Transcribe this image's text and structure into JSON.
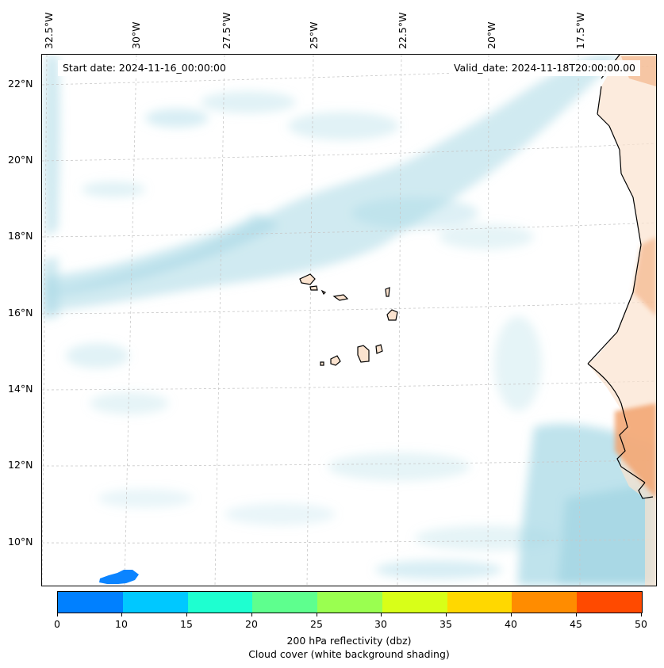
{
  "map": {
    "start_date": "Start date: 2024-11-16_00:00:00",
    "valid_date": "Valid_date: 2024-11-18T20:00:00.00",
    "longitude_labels": [
      "32.5°W",
      "30°W",
      "27.5°W",
      "25°W",
      "22.5°W",
      "20°W",
      "17.5°W"
    ],
    "latitude_labels": [
      "22°N",
      "20°N",
      "18°N",
      "16°N",
      "14°N",
      "12°N",
      "10°N"
    ],
    "land_color": "#f7c8a0",
    "cloud_color": "#a9d9e6"
  },
  "colorbar": {
    "ticks": [
      "0",
      "10",
      "15",
      "20",
      "25",
      "30",
      "35",
      "40",
      "45",
      "50"
    ],
    "colors": [
      "#0080ff",
      "#00c8ff",
      "#1effd0",
      "#5eff8e",
      "#9aff50",
      "#d8ff18",
      "#ffd800",
      "#ff8c00",
      "#ff4a00"
    ],
    "label_line1": "200 hPa reflectivity (dbz)",
    "label_line2": "Cloud cover (white background shading)"
  }
}
